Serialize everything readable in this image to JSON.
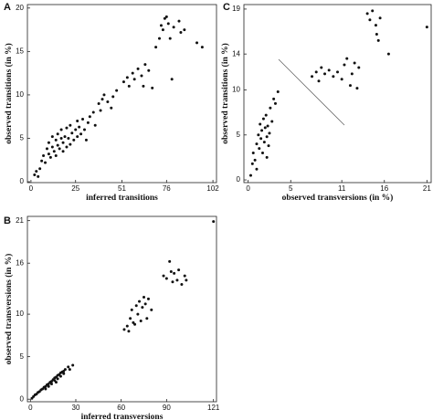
{
  "chart_data": [
    {
      "type": "scatter",
      "panel": "A",
      "x_label": "inferred transitions",
      "y_label": "observed transitions (in %)",
      "color": "#111111",
      "xlim": [
        -2,
        104
      ],
      "ylim": [
        -0.1,
        20.4
      ],
      "xticks": [
        0,
        25,
        51,
        76,
        102
      ],
      "yticks": [
        0,
        5,
        10,
        15,
        20
      ],
      "x": [
        2,
        3,
        4,
        5,
        6,
        7,
        8,
        9,
        10,
        10,
        11,
        12,
        12,
        13,
        14,
        14,
        15,
        15,
        16,
        17,
        17,
        18,
        18,
        19,
        20,
        20,
        21,
        22,
        22,
        23,
        24,
        25,
        26,
        26,
        27,
        28,
        29,
        30,
        31,
        32,
        33,
        35,
        36,
        38,
        39,
        40,
        41,
        43,
        45,
        46,
        48,
        52,
        54,
        55,
        57,
        58,
        60,
        62,
        63,
        64,
        66,
        68,
        70,
        72,
        73,
        74,
        75,
        76,
        77,
        78,
        79,
        80,
        83,
        84,
        86,
        93,
        96
      ],
      "values": [
        0.8,
        1.2,
        0.6,
        1.5,
        2.4,
        3.0,
        2.2,
        3.8,
        3.2,
        4.5,
        2.8,
        4.0,
        5.2,
        3.5,
        4.8,
        3.0,
        5.5,
        4.2,
        3.8,
        5.0,
        6.0,
        4.5,
        3.5,
        5.2,
        4.0,
        6.2,
        5.0,
        4.3,
        6.5,
        5.6,
        4.8,
        6.0,
        5.2,
        7.0,
        6.3,
        5.5,
        7.2,
        6.0,
        4.8,
        6.8,
        7.5,
        8.0,
        6.5,
        9.0,
        8.2,
        9.5,
        10.0,
        9.2,
        8.5,
        9.8,
        10.5,
        11.5,
        12.0,
        11.0,
        12.5,
        11.8,
        13.0,
        12.2,
        11.0,
        13.5,
        12.8,
        10.8,
        15.5,
        16.5,
        18.0,
        17.5,
        18.8,
        19.0,
        18.2,
        16.5,
        11.8,
        17.8,
        18.5,
        17.2,
        17.5,
        16.0,
        15.5
      ]
    },
    {
      "type": "scatter",
      "panel": "C",
      "x_label": "observed transversions (in %)",
      "y_label": "observed transitions (in %)",
      "color": "#111111",
      "xlim": [
        -0.5,
        21.5
      ],
      "ylim": [
        -0.3,
        19.5
      ],
      "xticks": [
        0,
        5,
        11,
        16,
        21
      ],
      "yticks": [
        0,
        5,
        10,
        14,
        19
      ],
      "x": [
        0.3,
        0.5,
        0.6,
        0.8,
        1.0,
        1.0,
        1.2,
        1.3,
        1.4,
        1.5,
        1.6,
        1.7,
        1.8,
        1.9,
        2.0,
        2.1,
        2.2,
        2.3,
        2.4,
        2.5,
        2.6,
        2.8,
        3.0,
        3.2,
        3.5,
        2.2,
        7.5,
        8.0,
        8.3,
        8.6,
        9.0,
        9.5,
        10.0,
        10.5,
        11.0,
        11.3,
        11.6,
        12.0,
        12.2,
        12.5,
        12.8,
        13.0,
        14.0,
        14.3,
        14.6,
        15.0,
        15.1,
        15.3,
        15.5,
        16.5,
        21
      ],
      "values": [
        0.5,
        1.8,
        3.0,
        2.2,
        4.0,
        1.2,
        5.0,
        3.5,
        6.2,
        4.6,
        5.5,
        3.0,
        6.8,
        4.2,
        5.8,
        7.2,
        4.8,
        6.0,
        3.8,
        5.2,
        8.0,
        6.5,
        9.0,
        8.5,
        9.8,
        2.5,
        11.5,
        12.0,
        11.0,
        12.5,
        11.8,
        12.2,
        11.5,
        12.0,
        11.2,
        12.8,
        13.5,
        10.5,
        11.8,
        13.0,
        10.2,
        12.5,
        18.5,
        17.8,
        18.8,
        17.2,
        16.2,
        15.5,
        18.0,
        14.0,
        17.0
      ]
    },
    {
      "type": "scatter",
      "panel": "B",
      "x_label": "inferred transversions",
      "y_label": "observed transversions (in %)",
      "color": "#111111",
      "xlim": [
        -2,
        123
      ],
      "ylim": [
        -0.3,
        21.5
      ],
      "xticks": [
        0,
        30,
        60,
        90,
        121
      ],
      "yticks": [
        0,
        5,
        10,
        16,
        21
      ],
      "x": [
        1,
        2,
        3,
        4,
        5,
        6,
        7,
        8,
        9,
        10,
        11,
        12,
        13,
        14,
        15,
        16,
        17,
        18,
        19,
        20,
        21,
        22,
        23,
        25,
        12,
        14,
        16,
        18,
        20,
        22,
        10,
        17,
        28,
        26,
        62,
        64,
        65,
        66,
        67,
        68,
        69,
        70,
        71,
        72,
        73,
        74,
        75,
        76,
        77,
        78,
        80,
        88,
        90,
        92,
        93,
        94,
        95,
        97,
        98,
        100,
        102,
        103,
        121
      ],
      "values": [
        0.1,
        0.3,
        0.5,
        0.6,
        0.8,
        0.9,
        1.1,
        1.2,
        1.4,
        1.5,
        1.7,
        1.8,
        2.0,
        2.1,
        2.3,
        2.5,
        2.6,
        2.8,
        2.9,
        3.1,
        3.2,
        3.3,
        3.5,
        3.8,
        1.5,
        1.8,
        2.2,
        2.4,
        2.7,
        3.0,
        1.2,
        2.0,
        4.0,
        3.5,
        8.2,
        8.6,
        8.0,
        9.5,
        10.5,
        9.0,
        8.8,
        11.0,
        10.0,
        11.5,
        9.2,
        10.8,
        12.0,
        11.2,
        9.5,
        11.8,
        10.5,
        14.5,
        14.2,
        16.2,
        15.0,
        13.8,
        14.8,
        14.0,
        15.2,
        13.5,
        14.5,
        14.0,
        20.9
      ]
    }
  ]
}
